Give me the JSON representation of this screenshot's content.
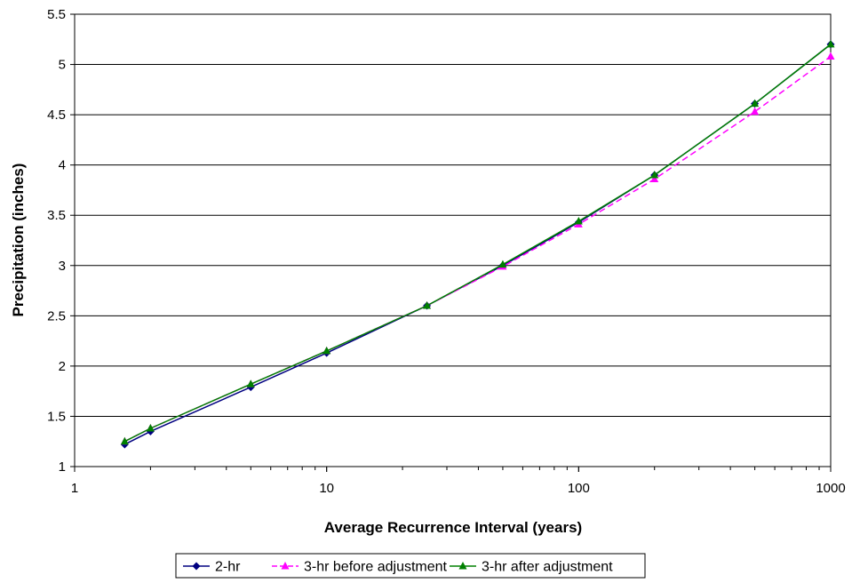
{
  "chart_data": {
    "type": "line",
    "title": "",
    "xlabel": "Average Recurrence Interval (years)",
    "ylabel": "Precipitation (inches)",
    "x_scale": "log",
    "xlim": [
      1,
      1000
    ],
    "ylim": [
      1,
      5.5
    ],
    "x_ticks": [
      1,
      10,
      100,
      1000
    ],
    "x_tick_labels": [
      "1",
      "10",
      "100",
      "1000"
    ],
    "y_ticks": [
      1,
      1.5,
      2,
      2.5,
      3,
      3.5,
      4,
      4.5,
      5,
      5.5
    ],
    "y_tick_labels": [
      "1",
      "1.5",
      "2",
      "2.5",
      "3",
      "3.5",
      "4",
      "4.5",
      "5",
      "5.5"
    ],
    "grid": "horizontal major gridlines",
    "legend_position": "bottom",
    "x": [
      1.58,
      2,
      5,
      10,
      25,
      50,
      100,
      200,
      500,
      1000
    ],
    "series": [
      {
        "name": "2-hr",
        "values": [
          1.22,
          1.35,
          1.79,
          2.13,
          2.6,
          3.0,
          3.43,
          3.9,
          4.61,
          5.2
        ],
        "color": "#000080",
        "line_style": "solid",
        "marker": "diamond"
      },
      {
        "name": "3-hr before adjustment",
        "values": [
          1.25,
          1.38,
          1.82,
          2.15,
          2.6,
          2.99,
          3.41,
          3.86,
          4.53,
          5.08
        ],
        "color": "#FF00FF",
        "line_style": "dashed",
        "marker": "triangle"
      },
      {
        "name": "3-hr after adjustment",
        "values": [
          1.25,
          1.38,
          1.82,
          2.15,
          2.6,
          3.01,
          3.44,
          3.9,
          4.61,
          5.2
        ],
        "color": "#008000",
        "line_style": "solid",
        "marker": "triangle"
      }
    ]
  }
}
